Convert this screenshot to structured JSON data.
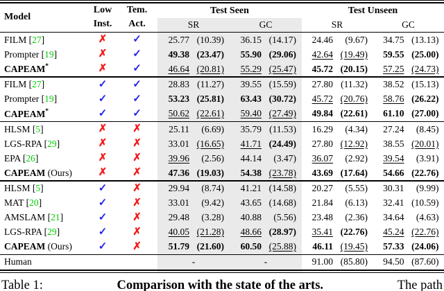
{
  "header": {
    "model": "Model",
    "low1": "Low",
    "low2": "Inst.",
    "tem1": "Tem.",
    "tem2": "Act.",
    "seen": "Test Seen",
    "unseen": "Test Unseen",
    "sr_seen": "SR",
    "gc_seen": "GC",
    "sr_unseen": "SR",
    "gc_unseen": "GC"
  },
  "colors": {
    "shade": "#eaeaea",
    "cross": "#f21b1b",
    "check": "#2323e8",
    "citation": "#00cc00"
  },
  "rows": [
    {
      "name": "FILM",
      "ref": "27",
      "low": "✗",
      "tem": "✓",
      "ss_v": "25.77",
      "ss_p": "(10.39)",
      "sg_v": "36.15",
      "sg_p": "(14.17)",
      "us_v": "24.46",
      "us_p": "(9.67)",
      "ug_v": "34.75",
      "ug_p": "(13.13)"
    },
    {
      "name": "Prompter",
      "ref": "19",
      "low": "✗",
      "tem": "✓",
      "ss_v": "49.38",
      "ss_p": "(23.47)",
      "sg_v": "55.90",
      "sg_p": "(29.06)",
      "us_v": "42.64",
      "us_p": "(19.49)",
      "ug_v": "59.55",
      "ug_p": "(25.00)"
    },
    {
      "name": "CAPEAM",
      "star": "*",
      "low": "✗",
      "tem": "✓",
      "ss_v": "46.64",
      "ss_p": "(20.81)",
      "sg_v": "55.29",
      "sg_p": "(25.47)",
      "us_v": "45.72",
      "us_p": "(20.15)",
      "ug_v": "57.25",
      "ug_p": "(24.73)"
    },
    {
      "name": "FILM",
      "ref": "27",
      "low": "✓",
      "tem": "✓",
      "ss_v": "28.83",
      "ss_p": "(11.27)",
      "sg_v": "39.55",
      "sg_p": "(15.59)",
      "us_v": "27.80",
      "us_p": "(11.32)",
      "ug_v": "38.52",
      "ug_p": "(15.13)"
    },
    {
      "name": "Prompter",
      "ref": "19",
      "low": "✓",
      "tem": "✓",
      "ss_v": "53.23",
      "ss_p": "(25.81)",
      "sg_v": "63.43",
      "sg_p": "(30.72)",
      "us_v": "45.72",
      "us_p": "(20.76)",
      "ug_v": "58.76",
      "ug_p": "(26.22)"
    },
    {
      "name": "CAPEAM",
      "star": "*",
      "low": "✓",
      "tem": "✓",
      "ss_v": "50.62",
      "ss_p": "(22.61)",
      "sg_v": "59.40",
      "sg_p": "(27.49)",
      "us_v": "49.84",
      "us_p": "(22.61)",
      "ug_v": "61.10",
      "ug_p": "(27.00)"
    },
    {
      "name": "HLSM",
      "ref": "5",
      "low": "✗",
      "tem": "✗",
      "ss_v": "25.11",
      "ss_p": "(6.69)",
      "sg_v": "35.79",
      "sg_p": "(11.53)",
      "us_v": "16.29",
      "us_p": "(4.34)",
      "ug_v": "27.24",
      "ug_p": "(8.45)"
    },
    {
      "name": "LGS-RPA",
      "ref": "29",
      "low": "✗",
      "tem": "✗",
      "ss_v": "33.01",
      "ss_p": "(16.65)",
      "sg_v": "41.71",
      "sg_p": "(24.49)",
      "us_v": "27.80",
      "us_p": "(12.92)",
      "ug_v": "38.55",
      "ug_p": "(20.01)"
    },
    {
      "name": "EPA",
      "ref": "26",
      "low": "✗",
      "tem": "✗",
      "ss_v": "39.96",
      "ss_p": "(2.56)",
      "sg_v": "44.14",
      "sg_p": "(3.47)",
      "us_v": "36.07",
      "us_p": "(2.92)",
      "ug_v": "39.54",
      "ug_p": "(3.91)"
    },
    {
      "name": "CAPEAM",
      "suffix": "(Ours)",
      "low": "✗",
      "tem": "✗",
      "ss_v": "47.36",
      "ss_p": "(19.03)",
      "sg_v": "54.38",
      "sg_p": "(23.78)",
      "us_v": "43.69",
      "us_p": "(17.64)",
      "ug_v": "54.66",
      "ug_p": "(22.76)"
    },
    {
      "name": "HLSM",
      "ref": "5",
      "low": "✓",
      "tem": "✗",
      "ss_v": "29.94",
      "ss_p": "(8.74)",
      "sg_v": "41.21",
      "sg_p": "(14.58)",
      "us_v": "20.27",
      "us_p": "(5.55)",
      "ug_v": "30.31",
      "ug_p": "(9.99)"
    },
    {
      "name": "MAT",
      "ref": "20",
      "low": "✓",
      "tem": "✗",
      "ss_v": "33.01",
      "ss_p": "(9.42)",
      "sg_v": "43.65",
      "sg_p": "(14.68)",
      "us_v": "21.84",
      "us_p": "(6.13)",
      "ug_v": "32.41",
      "ug_p": "(10.59)"
    },
    {
      "name": "AMSLAM",
      "ref": "21",
      "low": "✓",
      "tem": "✗",
      "ss_v": "29.48",
      "ss_p": "(3.28)",
      "sg_v": "40.88",
      "sg_p": "(5.56)",
      "us_v": "23.48",
      "us_p": "(2.36)",
      "ug_v": "34.64",
      "ug_p": "(4.63)"
    },
    {
      "name": "LGS-RPA",
      "ref": "29",
      "low": "✓",
      "tem": "✗",
      "ss_v": "40.05",
      "ss_p": "(21.28)",
      "sg_v": "48.66",
      "sg_p": "(28.97)",
      "us_v": "35.41",
      "us_p": "(22.76)",
      "ug_v": "45.24",
      "ug_p": "(22.76)"
    },
    {
      "name": "CAPEAM",
      "suffix": "(Ours)",
      "low": "✓",
      "tem": "✗",
      "ss_v": "51.79",
      "ss_p": "(21.60)",
      "sg_v": "60.50",
      "sg_p": "(25.88)",
      "us_v": "46.11",
      "us_p": "(19.45)",
      "ug_v": "57.33",
      "ug_p": "(24.06)"
    },
    {
      "name": "Human",
      "ss": "-",
      "sg": "-",
      "us_v": "91.00",
      "us_p": "(85.80)",
      "ug_v": "94.50",
      "ug_p": "(87.60)"
    }
  ],
  "caption": {
    "prefix": "Table 1:",
    "bold": "Comparison with the state of the arts.",
    "rest": "The path"
  }
}
